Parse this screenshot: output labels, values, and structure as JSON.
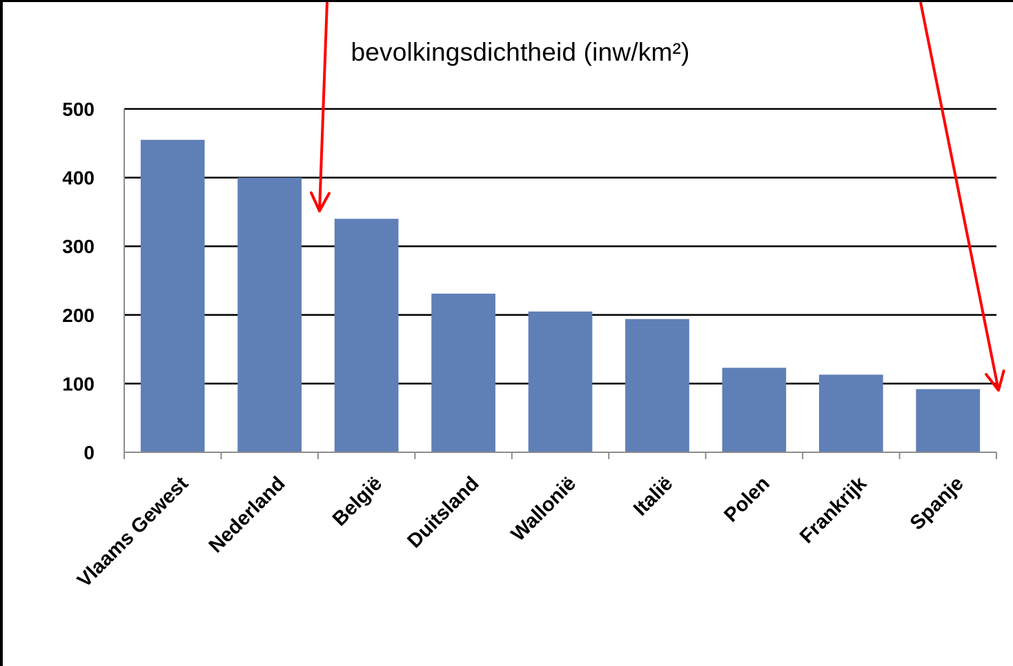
{
  "chart_data": {
    "type": "bar",
    "title": "bevolkingsdichtheid (inw/km²)",
    "xlabel": "",
    "ylabel": "",
    "categories": [
      "Vlaams Gewest",
      "Nederland",
      "België",
      "Duitsland",
      "Wallonië",
      "Italië",
      "Polen",
      "Frankrijk",
      "Spanje"
    ],
    "values": [
      455,
      400,
      340,
      231,
      205,
      194,
      123,
      113,
      92
    ],
    "ylim": [
      0,
      500
    ],
    "yticks": [
      0,
      100,
      200,
      300,
      400,
      500
    ],
    "grid": true,
    "legend": "none",
    "colors": {
      "bar": "#5f7fb7",
      "grid": "#000000",
      "annotation_arrow": "#ff0000"
    }
  },
  "annotations": [
    {
      "type": "arrow",
      "color": "#ff0000",
      "points_to": "België"
    },
    {
      "type": "arrow",
      "color": "#ff0000",
      "points_to": "Spanje"
    }
  ]
}
